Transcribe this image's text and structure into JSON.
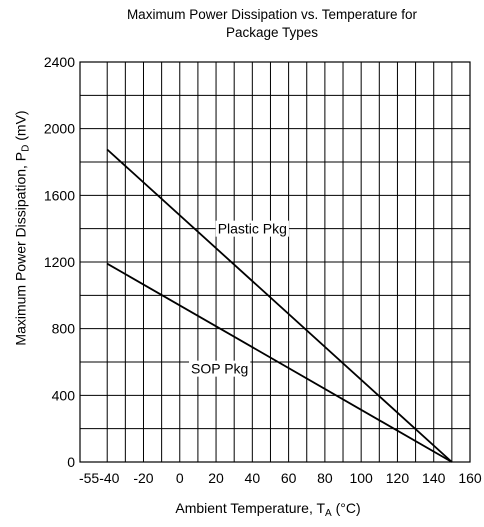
{
  "chart_data": {
    "type": "line",
    "title": [
      "Maximum Power Dissipation vs. Temperature for",
      "Package Types"
    ],
    "xlabel": {
      "main": "Ambient Temperature, T",
      "sub": "A",
      "suffix": " (°C)"
    },
    "ylabel": {
      "main": "Maximum Power Dissipation, P",
      "sub": "D",
      "suffix": " (mV)"
    },
    "xlim": [
      -55,
      160
    ],
    "ylim": [
      0,
      2400
    ],
    "x_ticks": [
      -55,
      -40,
      -20,
      0,
      20,
      40,
      60,
      80,
      100,
      120,
      140,
      160
    ],
    "x_tick_labels": [
      "-55",
      "-40",
      "-20",
      "0",
      "20",
      "40",
      "60",
      "80",
      "100",
      "120",
      "140",
      "160"
    ],
    "y_ticks": [
      0,
      400,
      800,
      1200,
      1600,
      2000,
      2400
    ],
    "y_tick_labels": [
      "0",
      "400",
      "800",
      "1200",
      "1600",
      "2000",
      "2400"
    ],
    "grid": true,
    "series": [
      {
        "name": "Plastic Pkg",
        "x": [
          -40,
          150
        ],
        "y": [
          1875,
          0
        ],
        "label_at": [
          40,
          1400
        ]
      },
      {
        "name": "SOP Pkg",
        "x": [
          -40,
          150
        ],
        "y": [
          1190,
          0
        ],
        "label_at": [
          22,
          560
        ]
      }
    ]
  }
}
